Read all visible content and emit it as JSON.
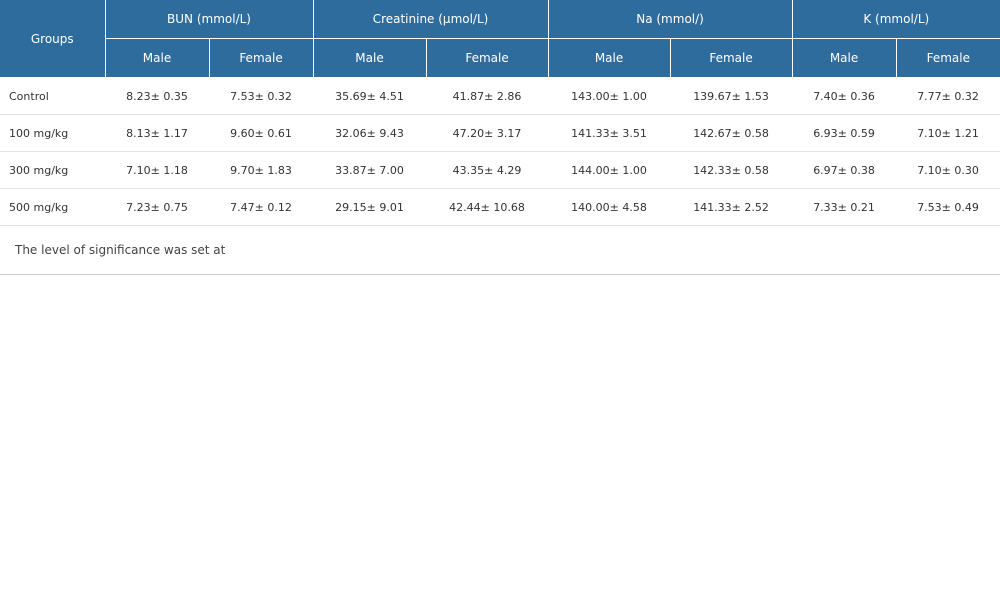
{
  "table": {
    "group_header": "Groups",
    "parameters": [
      {
        "label": "BUN (mmol/L)"
      },
      {
        "label": "Creatinine (μmol/L)"
      },
      {
        "label": "Na (mmol/)"
      },
      {
        "label": "K (mmol/L)"
      }
    ],
    "sex_labels": [
      "Male",
      "Female",
      "Male",
      "Female",
      "Male",
      "Female",
      "Male",
      "Female"
    ],
    "rows": [
      {
        "group": "Control",
        "cells": [
          "8.23± 0.35",
          "7.53± 0.32",
          "35.69± 4.51",
          "41.87± 2.86",
          "143.00± 1.00",
          "139.67± 1.53",
          "7.40± 0.36",
          "7.77± 0.32"
        ]
      },
      {
        "group": "100 mg/kg",
        "cells": [
          "8.13± 1.17",
          "9.60± 0.61",
          "32.06± 9.43",
          "47.20± 3.17",
          "141.33± 3.51",
          "142.67± 0.58",
          "6.93± 0.59",
          "7.10± 1.21"
        ]
      },
      {
        "group": "300 mg/kg",
        "cells": [
          "7.10± 1.18",
          "9.70± 1.83",
          "33.87± 7.00",
          "43.35± 4.29",
          "144.00± 1.00",
          "142.33± 0.58",
          "6.97± 0.38",
          "7.10± 0.30"
        ]
      },
      {
        "group": "500 mg/kg",
        "cells": [
          "7.23± 0.75",
          "7.47± 0.12",
          "29.15± 9.01",
          "42.44± 10.68",
          "140.00± 4.58",
          "141.33± 2.52",
          "7.33± 0.21",
          "7.53± 0.49"
        ]
      }
    ],
    "footnote": "The level of significance was set at"
  },
  "colors": {
    "header_bg": "#2f6c9e",
    "header_text": "#ffffff",
    "row_border": "#e3e3e3"
  }
}
